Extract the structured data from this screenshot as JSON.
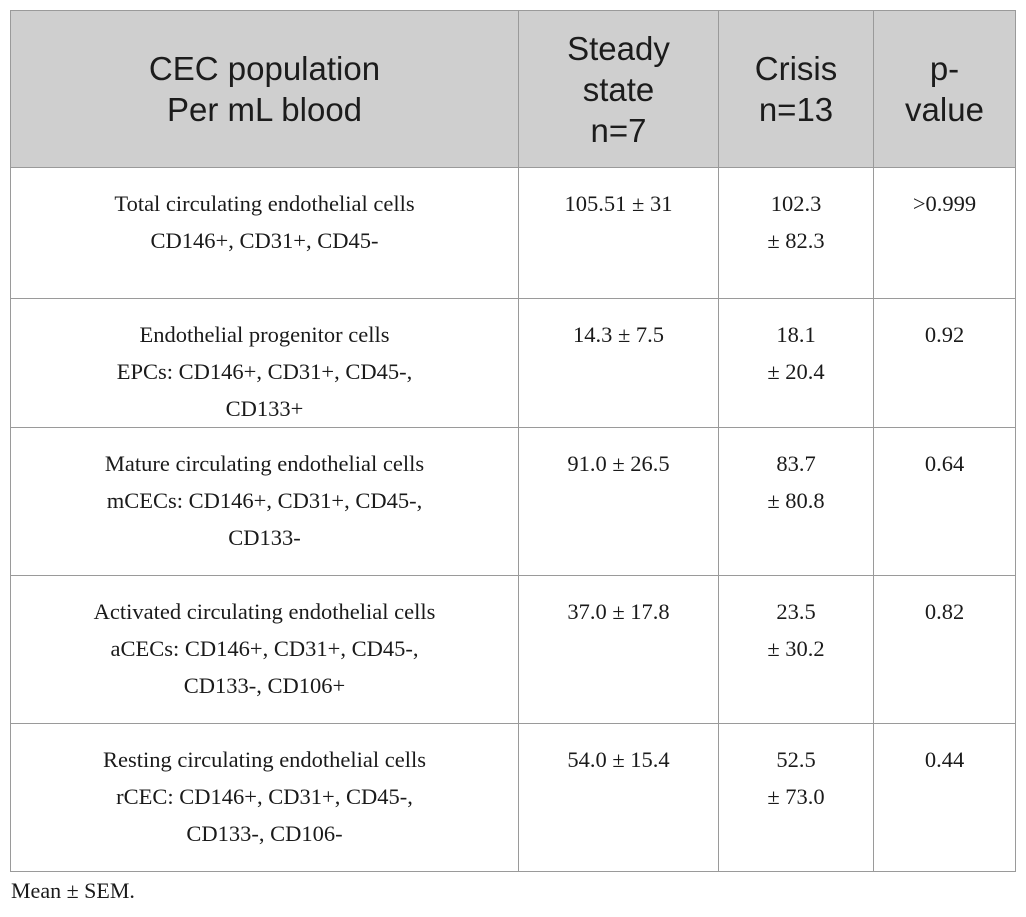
{
  "table": {
    "headers": [
      {
        "lines": [
          "CEC population",
          "Per mL blood"
        ]
      },
      {
        "lines": [
          "Steady",
          "state",
          "n=7"
        ]
      },
      {
        "lines": [
          "Crisis",
          "n=13"
        ]
      },
      {
        "lines": [
          "p-",
          "value"
        ]
      }
    ],
    "rows": [
      {
        "population": [
          "Total circulating endothelial cells",
          "CD146+, CD31+, CD45-"
        ],
        "steady": "105.51 ± 31",
        "crisis": [
          "102.3",
          "± 82.3"
        ],
        "p_value": ">0.999"
      },
      {
        "population": [
          "Endothelial progenitor cells",
          "EPCs: CD146+, CD31+, CD45-,",
          "CD133+"
        ],
        "steady": "14.3 ± 7.5",
        "crisis": [
          "18.1",
          "± 20.4"
        ],
        "p_value": "0.92"
      },
      {
        "population": [
          "Mature circulating endothelial cells",
          "mCECs: CD146+, CD31+, CD45-,",
          "CD133-"
        ],
        "steady": "91.0 ± 26.5",
        "crisis": [
          "83.7",
          "± 80.8"
        ],
        "p_value": "0.64"
      },
      {
        "population": [
          "Activated circulating endothelial cells",
          "aCECs: CD146+, CD31+, CD45-,",
          "CD133-, CD106+"
        ],
        "steady": "37.0 ± 17.8",
        "crisis": [
          "23.5",
          "± 30.2"
        ],
        "p_value": "0.82"
      },
      {
        "population": [
          "Resting circulating endothelial cells",
          "rCEC: CD146+, CD31+, CD45-,",
          "CD133-, CD106-"
        ],
        "steady": "54.0 ± 15.4",
        "crisis": [
          "52.5",
          "± 73.0"
        ],
        "p_value": "0.44"
      }
    ]
  },
  "footnote": "Mean ± SEM."
}
